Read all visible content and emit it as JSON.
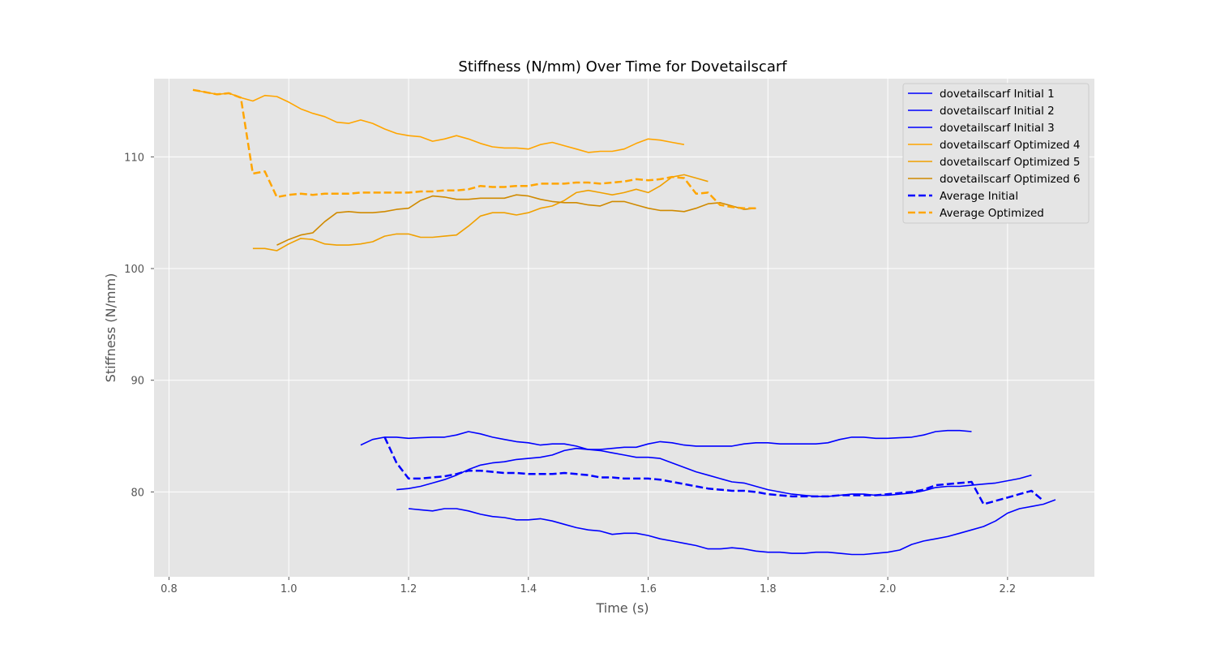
{
  "chart_data": {
    "type": "line",
    "title": "Stiffness (N/mm) Over Time for Dovetailscarf",
    "xlabel": "Time (s)",
    "ylabel": "Stiffness (N/mm)",
    "xlim": [
      0.775,
      2.345
    ],
    "ylim": [
      72.4,
      117.0
    ],
    "x_ticks": [
      0.8,
      1.0,
      1.2,
      1.4,
      1.6,
      1.8,
      2.0,
      2.2
    ],
    "x_tick_labels": [
      "0.8",
      "1.0",
      "1.2",
      "1.4",
      "1.6",
      "1.8",
      "2.0",
      "2.2"
    ],
    "y_ticks": [
      80,
      90,
      100,
      110
    ],
    "y_tick_labels": [
      "80",
      "90",
      "100",
      "110"
    ],
    "grid": true,
    "legend_position": "top-right",
    "series": [
      {
        "name": "dovetailscarf Initial 1",
        "color": "#0000ff",
        "style": "solid",
        "x": [
          1.12,
          1.14,
          1.16,
          1.18,
          1.2,
          1.22,
          1.24,
          1.26,
          1.28,
          1.3,
          1.32,
          1.34,
          1.36,
          1.38,
          1.4,
          1.42,
          1.44,
          1.46,
          1.48,
          1.5,
          1.52,
          1.54,
          1.56,
          1.58,
          1.6,
          1.62,
          1.64,
          1.66,
          1.68,
          1.7,
          1.72,
          1.74,
          1.76,
          1.78,
          1.8,
          1.82,
          1.84,
          1.86,
          1.88,
          1.9,
          1.92,
          1.94,
          1.96,
          1.98,
          2.0,
          2.02,
          2.04,
          2.06,
          2.08,
          2.1,
          2.12,
          2.14
        ],
        "values": [
          84.2,
          84.7,
          84.9,
          84.9,
          84.8,
          84.85,
          84.9,
          84.9,
          85.1,
          85.4,
          85.2,
          84.9,
          84.7,
          84.5,
          84.4,
          84.2,
          84.3,
          84.3,
          84.1,
          83.8,
          83.8,
          83.9,
          84.0,
          84.0,
          84.3,
          84.5,
          84.4,
          84.2,
          84.1,
          84.1,
          84.1,
          84.1,
          84.3,
          84.4,
          84.4,
          84.3,
          84.3,
          84.3,
          84.3,
          84.4,
          84.7,
          84.9,
          84.9,
          84.8,
          84.8,
          84.85,
          84.9,
          85.1,
          85.4,
          85.5,
          85.5,
          85.4
        ]
      },
      {
        "name": "dovetailscarf Initial 2",
        "color": "#0000ff",
        "style": "solid",
        "x": [
          1.18,
          1.2,
          1.22,
          1.24,
          1.26,
          1.28,
          1.3,
          1.32,
          1.34,
          1.36,
          1.38,
          1.4,
          1.42,
          1.44,
          1.46,
          1.48,
          1.5,
          1.52,
          1.54,
          1.56,
          1.58,
          1.6,
          1.62,
          1.64,
          1.66,
          1.68,
          1.7,
          1.72,
          1.74,
          1.76,
          1.78,
          1.8,
          1.82,
          1.84,
          1.86,
          1.88,
          1.9,
          1.92,
          1.94,
          1.96,
          1.98,
          2.0,
          2.02,
          2.04,
          2.06,
          2.08,
          2.1,
          2.12,
          2.14,
          2.16,
          2.18,
          2.2,
          2.22,
          2.24
        ],
        "values": [
          80.2,
          80.3,
          80.5,
          80.8,
          81.1,
          81.5,
          82.0,
          82.4,
          82.6,
          82.7,
          82.9,
          83.0,
          83.1,
          83.3,
          83.7,
          83.9,
          83.8,
          83.7,
          83.5,
          83.3,
          83.1,
          83.1,
          83.0,
          82.6,
          82.2,
          81.8,
          81.5,
          81.2,
          80.9,
          80.8,
          80.5,
          80.2,
          80.0,
          79.8,
          79.7,
          79.6,
          79.6,
          79.7,
          79.8,
          79.8,
          79.7,
          79.7,
          79.8,
          79.9,
          80.1,
          80.4,
          80.5,
          80.5,
          80.6,
          80.7,
          80.8,
          81.0,
          81.2,
          81.5
        ]
      },
      {
        "name": "dovetailscarf Initial 3",
        "color": "#0000ff",
        "style": "solid",
        "x": [
          1.2,
          1.22,
          1.24,
          1.26,
          1.28,
          1.3,
          1.32,
          1.34,
          1.36,
          1.38,
          1.4,
          1.42,
          1.44,
          1.46,
          1.48,
          1.5,
          1.52,
          1.54,
          1.56,
          1.58,
          1.6,
          1.62,
          1.64,
          1.66,
          1.68,
          1.7,
          1.72,
          1.74,
          1.76,
          1.78,
          1.8,
          1.82,
          1.84,
          1.86,
          1.88,
          1.9,
          1.92,
          1.94,
          1.96,
          1.98,
          2.0,
          2.02,
          2.04,
          2.06,
          2.08,
          2.1,
          2.12,
          2.14,
          2.16,
          2.18,
          2.2,
          2.22,
          2.24,
          2.26,
          2.28
        ],
        "values": [
          78.5,
          78.4,
          78.3,
          78.5,
          78.5,
          78.3,
          78.0,
          77.8,
          77.7,
          77.5,
          77.5,
          77.6,
          77.4,
          77.1,
          76.8,
          76.6,
          76.5,
          76.2,
          76.3,
          76.3,
          76.1,
          75.8,
          75.6,
          75.4,
          75.2,
          74.9,
          74.9,
          75.0,
          74.9,
          74.7,
          74.6,
          74.6,
          74.5,
          74.5,
          74.6,
          74.6,
          74.5,
          74.4,
          74.4,
          74.5,
          74.6,
          74.8,
          75.3,
          75.6,
          75.8,
          76.0,
          76.3,
          76.6,
          76.9,
          77.4,
          78.1,
          78.5,
          78.7,
          78.9,
          79.3
        ]
      },
      {
        "name": "dovetailscarf Optimized 4",
        "color": "#ffa500",
        "style": "solid",
        "x": [
          0.84,
          0.86,
          0.88,
          0.9,
          0.92,
          0.94,
          0.96,
          0.98,
          1.0,
          1.02,
          1.04,
          1.06,
          1.08,
          1.1,
          1.12,
          1.14,
          1.16,
          1.18,
          1.2,
          1.22,
          1.24,
          1.26,
          1.28,
          1.3,
          1.32,
          1.34,
          1.36,
          1.38,
          1.4,
          1.42,
          1.44,
          1.46,
          1.48,
          1.5,
          1.52,
          1.54,
          1.56,
          1.58,
          1.6,
          1.62,
          1.64,
          1.66
        ],
        "values": [
          116.0,
          115.8,
          115.6,
          115.7,
          115.3,
          115.0,
          115.5,
          115.4,
          114.9,
          114.3,
          113.9,
          113.6,
          113.1,
          113.0,
          113.3,
          113.0,
          112.5,
          112.1,
          111.9,
          111.8,
          111.4,
          111.6,
          111.9,
          111.6,
          111.2,
          110.9,
          110.8,
          110.8,
          110.7,
          111.1,
          111.3,
          111.0,
          110.7,
          110.4,
          110.5,
          110.5,
          110.7,
          111.2,
          111.6,
          111.5,
          111.3,
          111.1
        ]
      },
      {
        "name": "dovetailscarf Optimized 5",
        "color": "#f0a000",
        "style": "solid",
        "x": [
          0.94,
          0.96,
          0.98,
          1.0,
          1.02,
          1.04,
          1.06,
          1.08,
          1.1,
          1.12,
          1.14,
          1.16,
          1.18,
          1.2,
          1.22,
          1.24,
          1.26,
          1.28,
          1.3,
          1.32,
          1.34,
          1.36,
          1.38,
          1.4,
          1.42,
          1.44,
          1.46,
          1.48,
          1.5,
          1.52,
          1.54,
          1.56,
          1.58,
          1.6,
          1.62,
          1.64,
          1.66,
          1.68,
          1.7
        ],
        "values": [
          101.8,
          101.8,
          101.6,
          102.2,
          102.7,
          102.6,
          102.2,
          102.1,
          102.1,
          102.2,
          102.4,
          102.9,
          103.1,
          103.1,
          102.8,
          102.8,
          102.9,
          103.0,
          103.8,
          104.7,
          105.0,
          105.0,
          104.8,
          105.0,
          105.4,
          105.6,
          106.1,
          106.8,
          107.0,
          106.8,
          106.6,
          106.8,
          107.1,
          106.8,
          107.4,
          108.2,
          108.4,
          108.1,
          107.8
        ]
      },
      {
        "name": "dovetailscarf Optimized 6",
        "color": "#d08a00",
        "style": "solid",
        "x": [
          0.98,
          1.0,
          1.02,
          1.04,
          1.06,
          1.08,
          1.1,
          1.12,
          1.14,
          1.16,
          1.18,
          1.2,
          1.22,
          1.24,
          1.26,
          1.28,
          1.3,
          1.32,
          1.34,
          1.36,
          1.38,
          1.4,
          1.42,
          1.44,
          1.46,
          1.48,
          1.5,
          1.52,
          1.54,
          1.56,
          1.58,
          1.6,
          1.62,
          1.64,
          1.66,
          1.68,
          1.7,
          1.72,
          1.74,
          1.76,
          1.78
        ],
        "values": [
          102.1,
          102.6,
          103.0,
          103.2,
          104.2,
          105.0,
          105.1,
          105.0,
          105.0,
          105.1,
          105.3,
          105.4,
          106.1,
          106.5,
          106.4,
          106.2,
          106.2,
          106.3,
          106.3,
          106.3,
          106.6,
          106.5,
          106.2,
          106.0,
          105.9,
          105.9,
          105.7,
          105.6,
          106.0,
          106.0,
          105.7,
          105.4,
          105.2,
          105.2,
          105.1,
          105.4,
          105.8,
          105.9,
          105.6,
          105.3,
          105.4
        ]
      },
      {
        "name": "Average Initial",
        "color": "#0000ff",
        "style": "dashed",
        "x": [
          1.16,
          1.18,
          1.2,
          1.22,
          1.24,
          1.26,
          1.28,
          1.3,
          1.32,
          1.34,
          1.36,
          1.38,
          1.4,
          1.42,
          1.44,
          1.46,
          1.48,
          1.5,
          1.52,
          1.54,
          1.56,
          1.58,
          1.6,
          1.62,
          1.64,
          1.66,
          1.68,
          1.7,
          1.72,
          1.74,
          1.76,
          1.78,
          1.8,
          1.82,
          1.84,
          1.86,
          1.88,
          1.9,
          1.92,
          1.94,
          1.96,
          1.98,
          2.0,
          2.02,
          2.04,
          2.06,
          2.08,
          2.1,
          2.12,
          2.14,
          2.16,
          2.18,
          2.2,
          2.22,
          2.24,
          2.26
        ],
        "values": [
          84.9,
          82.6,
          81.2,
          81.2,
          81.3,
          81.4,
          81.6,
          81.9,
          81.9,
          81.8,
          81.7,
          81.7,
          81.6,
          81.6,
          81.6,
          81.7,
          81.6,
          81.5,
          81.3,
          81.3,
          81.2,
          81.2,
          81.2,
          81.1,
          80.9,
          80.7,
          80.5,
          80.3,
          80.2,
          80.1,
          80.1,
          80.0,
          79.8,
          79.7,
          79.6,
          79.6,
          79.6,
          79.6,
          79.7,
          79.7,
          79.7,
          79.7,
          79.8,
          79.9,
          80.0,
          80.2,
          80.6,
          80.7,
          80.8,
          80.9,
          78.9,
          79.2,
          79.5,
          79.8,
          80.1,
          79.2
        ]
      },
      {
        "name": "Average Optimized",
        "color": "#ffa500",
        "style": "dashed",
        "x": [
          0.84,
          0.86,
          0.88,
          0.9,
          0.92,
          0.94,
          0.96,
          0.98,
          1.0,
          1.02,
          1.04,
          1.06,
          1.08,
          1.1,
          1.12,
          1.14,
          1.16,
          1.18,
          1.2,
          1.22,
          1.24,
          1.26,
          1.28,
          1.3,
          1.32,
          1.34,
          1.36,
          1.38,
          1.4,
          1.42,
          1.44,
          1.46,
          1.48,
          1.5,
          1.52,
          1.54,
          1.56,
          1.58,
          1.6,
          1.62,
          1.64,
          1.66,
          1.68,
          1.7,
          1.72,
          1.74,
          1.76,
          1.78
        ],
        "values": [
          116.0,
          115.8,
          115.6,
          115.7,
          115.3,
          108.5,
          108.7,
          106.4,
          106.6,
          106.7,
          106.6,
          106.7,
          106.7,
          106.7,
          106.8,
          106.8,
          106.8,
          106.8,
          106.8,
          106.9,
          106.9,
          107.0,
          107.0,
          107.1,
          107.4,
          107.3,
          107.3,
          107.4,
          107.4,
          107.6,
          107.6,
          107.6,
          107.7,
          107.7,
          107.6,
          107.7,
          107.8,
          108.0,
          107.9,
          108.0,
          108.2,
          108.1,
          106.7,
          106.8,
          105.7,
          105.5,
          105.4,
          105.4
        ]
      }
    ]
  }
}
